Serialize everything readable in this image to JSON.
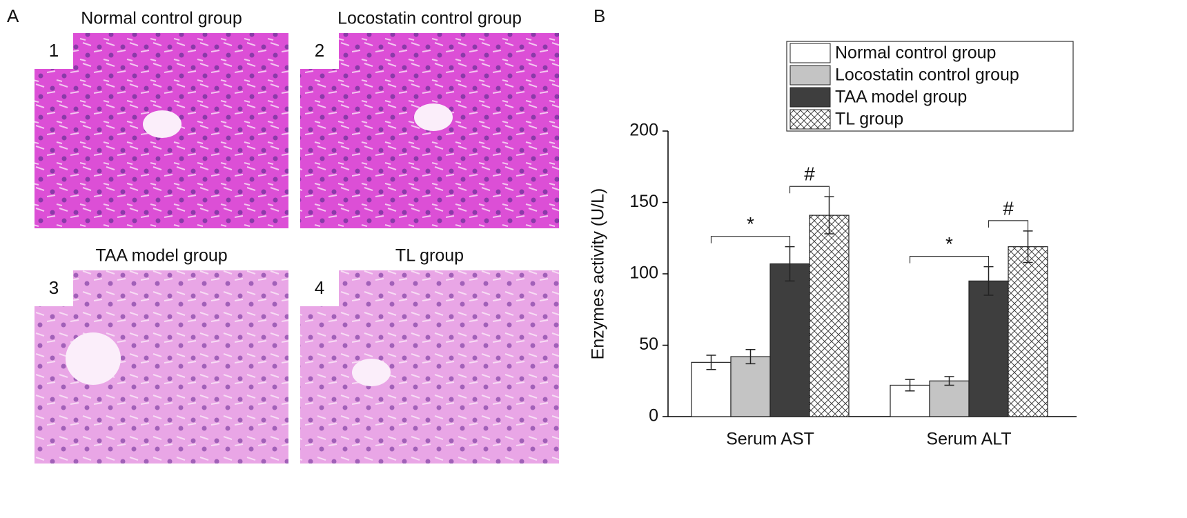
{
  "figure": {
    "panel_a_label": "A",
    "panel_b_label": "B",
    "images": [
      {
        "number": "1",
        "title": "Normal control group"
      },
      {
        "number": "2",
        "title": "Locostatin control group"
      },
      {
        "number": "3",
        "title": "TAA model group"
      },
      {
        "number": "4",
        "title": "TL group"
      }
    ]
  },
  "chart_data": {
    "type": "bar",
    "y_label": "Enzymes activity (U/L)",
    "categories": [
      "Serum AST",
      "Serum ALT"
    ],
    "series": [
      {
        "name": "Normal control group",
        "color": "#ffffff",
        "values": [
          38,
          22
        ],
        "errors": [
          5,
          4
        ]
      },
      {
        "name": "Locostatin control group",
        "color": "#c4c4c4",
        "values": [
          42,
          25
        ],
        "errors": [
          5,
          3
        ]
      },
      {
        "name": "TAA model group",
        "color": "#3e3e3e",
        "values": [
          107,
          95
        ],
        "errors": [
          12,
          10
        ]
      },
      {
        "name": "TL group",
        "color": "#ffffff",
        "pattern": "crosshatch",
        "values": [
          141,
          119
        ],
        "errors": [
          13,
          11
        ]
      }
    ],
    "annotations": [
      "*",
      "#",
      "*",
      "#"
    ],
    "ylim": [
      0,
      200
    ],
    "yticks": [
      0,
      50,
      100,
      150,
      200
    ],
    "grid": false,
    "legend": "top-right"
  }
}
